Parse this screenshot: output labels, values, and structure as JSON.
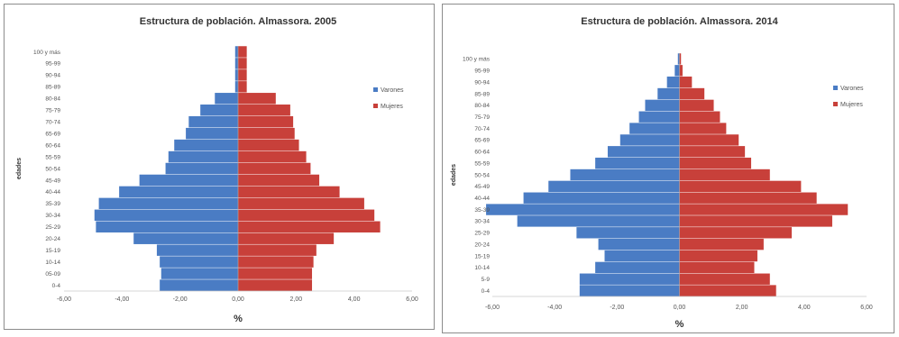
{
  "chart_data": [
    {
      "type": "bar",
      "orientation": "horizontal",
      "title": "Estructura de población. Almassora. 2005",
      "xlabel": "%",
      "ylabel": "edades",
      "xlim": [
        -6,
        6
      ],
      "x_ticks": [
        "-6,00",
        "-4,00",
        "-2,00",
        "0,00",
        "2,00",
        "4,00",
        "6,00"
      ],
      "categories": [
        "0-4",
        "05-09",
        "10-14",
        "15-19",
        "20-24",
        "25-29",
        "30-34",
        "35-39",
        "40-44",
        "45-49",
        "50-54",
        "55-59",
        "60-64",
        "65-69",
        "70-74",
        "75-79",
        "80-84",
        "85-89",
        "90-94",
        "95-99",
        "100 y más"
      ],
      "legend_position": "right",
      "series": [
        {
          "name": "Varones",
          "color": "#4a7cc4",
          "values": [
            -2.7,
            -2.65,
            -2.7,
            -2.8,
            -3.6,
            -4.9,
            -4.95,
            -4.8,
            -4.1,
            -3.4,
            -2.5,
            -2.4,
            -2.2,
            -1.8,
            -1.7,
            -1.3,
            -0.8,
            -0.1,
            -0.1,
            -0.1,
            -0.1
          ]
        },
        {
          "name": "Mujeres",
          "color": "#c8403a",
          "values": [
            2.55,
            2.55,
            2.6,
            2.7,
            3.3,
            4.9,
            4.7,
            4.35,
            3.5,
            2.8,
            2.5,
            2.35,
            2.1,
            1.95,
            1.9,
            1.8,
            1.3,
            0.3,
            0.3,
            0.3,
            0.3
          ]
        }
      ]
    },
    {
      "type": "bar",
      "orientation": "horizontal",
      "title": "Estructura de población. Almassora. 2014",
      "xlabel": "%",
      "ylabel": "edades",
      "xlim": [
        -6,
        6
      ],
      "x_ticks": [
        "-6,00",
        "-4,00",
        "-2,00",
        "0,00",
        "2,00",
        "4,00",
        "6,00"
      ],
      "categories": [
        "0-4",
        "5-9",
        "10-14",
        "15-19",
        "20-24",
        "25-29",
        "30-34",
        "35-39",
        "40-44",
        "45-49",
        "50-54",
        "55-59",
        "60-64",
        "65-69",
        "70-74",
        "75-79",
        "80-84",
        "85-89",
        "90-94",
        "95-99",
        "100 y más"
      ],
      "legend_position": "right",
      "series": [
        {
          "name": "Varones",
          "color": "#4a7cc4",
          "values": [
            -3.2,
            -3.2,
            -2.7,
            -2.4,
            -2.6,
            -3.3,
            -5.2,
            -6.2,
            -5.0,
            -4.2,
            -3.5,
            -2.7,
            -2.3,
            -1.9,
            -1.6,
            -1.3,
            -1.1,
            -0.7,
            -0.4,
            -0.15,
            -0.05
          ]
        },
        {
          "name": "Mujeres",
          "color": "#c8403a",
          "values": [
            3.1,
            2.9,
            2.4,
            2.5,
            2.7,
            3.6,
            4.9,
            5.4,
            4.4,
            3.9,
            2.9,
            2.3,
            2.1,
            1.9,
            1.5,
            1.3,
            1.1,
            0.8,
            0.4,
            0.1,
            0.05
          ]
        }
      ]
    }
  ]
}
